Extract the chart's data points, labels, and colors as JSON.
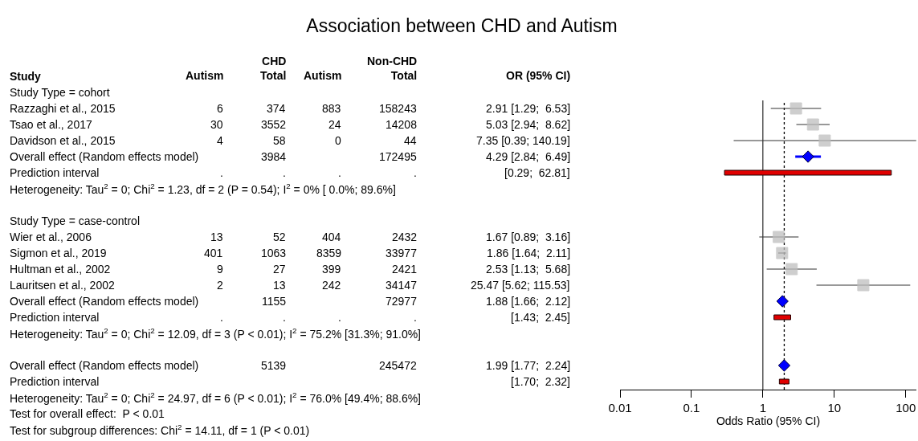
{
  "chart_data": [
    {
      "type": "other",
      "title": "Association between CHD and Autism",
      "categories": [
        "Study",
        "Study Type = cohort",
        "Razzaghi et al., 2015",
        "Tsao et al., 2017",
        "Davidson et al., 2015",
        "Overall effect (Random effects model)",
        "Prediction interval",
        "Heterogeneity: Tau$^{2}$ = 0; Chi$^{2}$ = 1.23, df = 2 (P = 0.54); I$^{2}$ = 0% [ 0.0%; 89.6%]",
        null,
        "Study Type = case-control",
        "Wier et al., 2006",
        "Sigmon et al., 2019",
        "Hultman et al., 2002",
        "Lauritsen et al., 2002",
        "Overall effect (Random effects model)",
        "Prediction interval",
        "Heterogeneity: Tau$^{2}$ = 0; Chi$^{2}$ = 12.09, df = 3 (P < 0.01); I$^{2}$ = 75.2% [31.3%; 91.0%]",
        null,
        "Overall effect (Random effects model)",
        "Prediction interval",
        "Heterogeneity: Tau$^{2}$ = 0; Chi$^{2}$ = 24.97, df = 6 (P < 0.01); I$^{2}$ = 76.0% [49.4%; 88.6%]",
        "Test for overall effect:  P < 0.01",
        "Test for subgroup differences: Chi$^{2}$ = 14.11, df = 1 (P < 0.01)"
      ],
      "series": [
        {
          "name": "Autism",
          "values": [
            null,
            null,
            6,
            30,
            4,
            null,
            null,
            null,
            null,
            null,
            13,
            401,
            9,
            2,
            null,
            null,
            null,
            null,
            null,
            null,
            null,
            null,
            null
          ],
          "value_labels": [
            null,
            null,
            "6",
            "30",
            "4",
            null,
            ".",
            null,
            null,
            null,
            "13",
            "401",
            "9",
            "2",
            null,
            ".",
            null,
            null,
            null,
            null,
            null,
            null,
            null
          ]
        },
        {
          "name": "CHD\nTotal",
          "values": [
            null,
            null,
            374,
            3552,
            58,
            3984,
            null,
            null,
            null,
            null,
            52,
            1063,
            27,
            13,
            1155,
            null,
            null,
            null,
            5139,
            null,
            null,
            null,
            null
          ],
          "value_labels": [
            null,
            null,
            "374",
            "3552",
            "58",
            "3984",
            ".",
            null,
            null,
            null,
            "52",
            "1063",
            "27",
            "13",
            "1155",
            ".",
            null,
            null,
            "5139",
            null,
            null,
            null,
            null
          ]
        },
        {
          "name": "Autism",
          "values": [
            null,
            null,
            883,
            24,
            0,
            null,
            null,
            null,
            null,
            null,
            404,
            8359,
            399,
            242,
            null,
            null,
            null,
            null,
            null,
            null,
            null,
            null,
            null
          ],
          "value_labels": [
            null,
            null,
            "883",
            "24",
            "0",
            null,
            ".",
            null,
            null,
            null,
            "404",
            "8359",
            "399",
            "242",
            null,
            ".",
            null,
            null,
            null,
            null,
            null,
            null,
            null
          ]
        },
        {
          "name": "Non-CHD\nTotal",
          "values": [
            null,
            null,
            158243,
            14208,
            44,
            172495,
            null,
            null,
            null,
            null,
            2432,
            33977,
            2421,
            34147,
            72977,
            null,
            null,
            null,
            245472,
            null,
            null,
            null,
            null
          ],
          "value_labels": [
            null,
            null,
            "158243",
            "14208",
            "44",
            "172495",
            ".",
            null,
            null,
            null,
            "2432",
            "33977",
            "2421",
            "34147",
            "72977",
            ".",
            null,
            null,
            "245472",
            null,
            null,
            null,
            null
          ]
        },
        {
          "name": "OR (95% CI)",
          "values": [
            null,
            null,
            2.91,
            5.03,
            7.35,
            4.29,
            null,
            null,
            null,
            null,
            1.67,
            1.86,
            2.53,
            25.47,
            1.88,
            null,
            null,
            null,
            1.99,
            null,
            null,
            null,
            null
          ],
          "value_labels": [
            null,
            null,
            "2.91 [1.29;  6.53]",
            "5.03 [2.94;  8.62]",
            "7.35 [0.39; 140.19]",
            "4.29 [2.84;  6.49]",
            "[0.29;  62.81]",
            null,
            null,
            null,
            "1.67 [0.89;  3.16]",
            "1.86 [1.64;  2.11]",
            "2.53 [1.13;  5.68]",
            "25.47 [5.62; 115.53]",
            "1.88 [1.66;  2.12]",
            "[1.43;  2.45]",
            null,
            null,
            "1.99 [1.77;  2.24]",
            "[1.70;  2.32]",
            null,
            null,
            null
          ]
        }
      ]
    },
    {
      "type": "scatter",
      "orientation": "horizontal",
      "log": "x",
      "xlim": [
        0.01,
        141
      ],
      "xticks": [
        0.01,
        0.1,
        1,
        10,
        100
      ],
      "xlabel": "Odds Ratio (95% CI)",
      "tick_labels": "x",
      "categories": [
        null,
        null,
        null,
        null,
        null,
        null,
        null,
        null,
        null,
        null,
        null,
        null,
        null,
        null,
        null,
        null,
        null,
        null
      ],
      "series": [
        {
          "type": "scatter",
          "marker": "square",
          "color": "#bebebe",
          "values": [
            2.91,
            5.03,
            7.35,
            null,
            null,
            null,
            null,
            null,
            1.67,
            1.86,
            2.53,
            25.47,
            null,
            null,
            null,
            null,
            null,
            null
          ],
          "errors": [
            [
              1.29,
              6.53
            ],
            [
              2.94,
              8.62
            ],
            [
              0.39,
              140.19
            ],
            null,
            null,
            null,
            null,
            null,
            [
              0.89,
              3.16
            ],
            [
              1.64,
              2.11
            ],
            [
              1.13,
              5.68
            ],
            [
              5.62,
              115.53
            ],
            null,
            null,
            null,
            null,
            null,
            null
          ]
        },
        {
          "type": "scatter",
          "marker": "diamond",
          "color": "#0000ff",
          "values": [
            null,
            null,
            null,
            4.29,
            null,
            null,
            null,
            null,
            null,
            null,
            null,
            null,
            1.88,
            null,
            null,
            null,
            1.99,
            null
          ],
          "errors": [
            null,
            null,
            null,
            [
              2.84,
              6.49
            ],
            null,
            null,
            null,
            null,
            null,
            null,
            null,
            null,
            [
              1.66,
              2.12
            ],
            null,
            null,
            null,
            [
              1.77,
              2.24
            ],
            null
          ]
        },
        {
          "type": "bar",
          "color": "#e00000",
          "base": [
            null,
            null,
            null,
            null,
            0.29,
            null,
            null,
            null,
            null,
            null,
            null,
            null,
            null,
            1.43,
            null,
            null,
            null,
            1.7
          ],
          "values": [
            null,
            null,
            null,
            null,
            62.52,
            null,
            null,
            null,
            null,
            null,
            null,
            null,
            null,
            1.02,
            null,
            null,
            null,
            0.62
          ]
        }
      ],
      "ref_lines": [
        {
          "axis": "x",
          "value": 1,
          "line_style": "solid"
        },
        {
          "axis": "x",
          "value": 1.99,
          "line_style": "dotted"
        }
      ]
    }
  ]
}
